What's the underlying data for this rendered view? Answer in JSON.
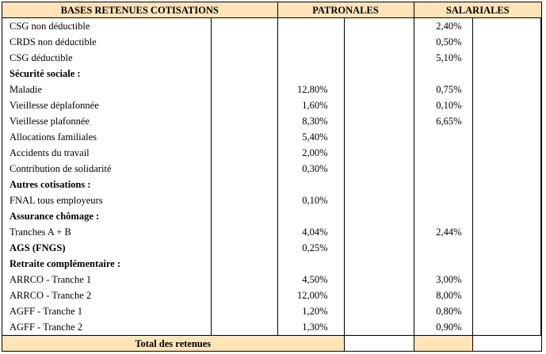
{
  "header": {
    "bases": "BASES RETENUES COTISATIONS",
    "patronales": "PATRONALES",
    "salariales": "SALARIALES"
  },
  "rows": [
    {
      "label": "CSG non déductible",
      "bold": false,
      "pat": "",
      "sal": "2,40%"
    },
    {
      "label": "CRDS non déductible",
      "bold": false,
      "pat": "",
      "sal": "0,50%"
    },
    {
      "label": "CSG déductible",
      "bold": false,
      "pat": "",
      "sal": "5,10%"
    },
    {
      "label": "Sécurité sociale :",
      "bold": true,
      "pat": "",
      "sal": ""
    },
    {
      "label": "Maladie",
      "bold": false,
      "pat": "12,80%",
      "sal": "0,75%"
    },
    {
      "label": "Vieillesse déplafonnée",
      "bold": false,
      "pat": "1,60%",
      "sal": "0,10%"
    },
    {
      "label": "Vieillesse plafonnée",
      "bold": false,
      "pat": "8,30%",
      "sal": "6,65%"
    },
    {
      "label": "Allocations familiales",
      "bold": false,
      "pat": "5,40%",
      "sal": ""
    },
    {
      "label": "Accidents du travail",
      "bold": false,
      "pat": "2,00%",
      "sal": ""
    },
    {
      "label": "Contribution de solidarité",
      "bold": false,
      "pat": "0,30%",
      "sal": ""
    },
    {
      "label": "Autres cotisations :",
      "bold": true,
      "pat": "",
      "sal": ""
    },
    {
      "label": "FNAL tous employeurs",
      "bold": false,
      "pat": "0,10%",
      "sal": ""
    },
    {
      "label": "Assurance chômage :",
      "bold": true,
      "pat": "",
      "sal": ""
    },
    {
      "label": "Tranches A + B",
      "bold": false,
      "pat": "4,04%",
      "sal": "2,44%"
    },
    {
      "label": "AGS (FNGS)",
      "bold": true,
      "pat": "0,25%",
      "sal": ""
    },
    {
      "label": "Retraite complémentaire :",
      "bold": true,
      "pat": "",
      "sal": ""
    },
    {
      "label": "ARRCO - Tranche 1",
      "bold": false,
      "pat": "4,50%",
      "sal": "3,00%"
    },
    {
      "label": "ARRCO - Tranche 2",
      "bold": false,
      "pat": "12,00%",
      "sal": "8,00%"
    },
    {
      "label": "AGFF - Tranche 1",
      "bold": false,
      "pat": "1,20%",
      "sal": "0,80%"
    },
    {
      "label": "AGFF - Tranche 2",
      "bold": false,
      "pat": "1,30%",
      "sal": "0,90%"
    }
  ],
  "total": {
    "label": "Total des retenues"
  }
}
